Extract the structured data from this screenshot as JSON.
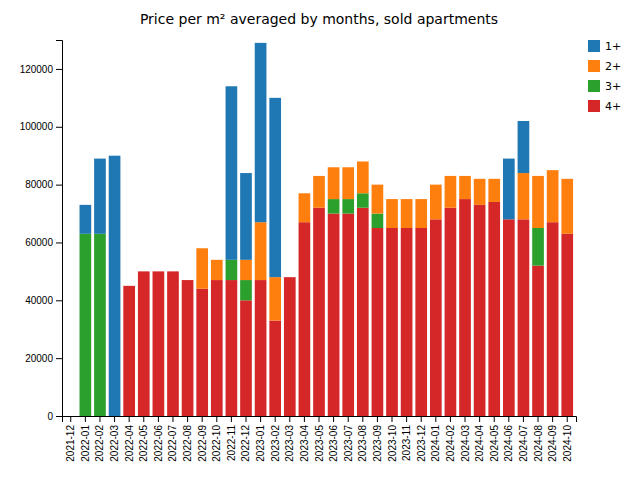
{
  "chart_data": {
    "type": "bar",
    "title": "Price per m² averaged by months, sold apartments",
    "stacked": true,
    "categories": [
      "2021-12",
      "2022-01",
      "2022-02",
      "2022-03",
      "2022-04",
      "2022-05",
      "2022-06",
      "2022-07",
      "2022-08",
      "2022-09",
      "2022-10",
      "2022-11",
      "2022-12",
      "2023-01",
      "2023-02",
      "2023-03",
      "2023-04",
      "2023-05",
      "2023-06",
      "2023-07",
      "2023-08",
      "2023-09",
      "2023-10",
      "2023-11",
      "2023-12",
      "2024-01",
      "2024-02",
      "2024-03",
      "2024-04",
      "2024-05",
      "2024-06",
      "2024-07",
      "2024-08",
      "2024-09",
      "2024-10"
    ],
    "series": [
      {
        "name": "4+",
        "color": "#d62728",
        "values": [
          0,
          0,
          0,
          0,
          45000,
          50000,
          50000,
          50000,
          47000,
          44000,
          47000,
          47000,
          40000,
          47000,
          33000,
          48000,
          67000,
          72000,
          70000,
          70000,
          72000,
          65000,
          65000,
          65000,
          65000,
          68000,
          72000,
          75000,
          73000,
          74000,
          68000,
          68000,
          52000,
          67000,
          63000
        ]
      },
      {
        "name": "3+",
        "color": "#2ca02c",
        "values": [
          0,
          63000,
          63000,
          0,
          0,
          0,
          0,
          0,
          0,
          0,
          0,
          7000,
          7000,
          0,
          0,
          0,
          0,
          0,
          5000,
          5000,
          5000,
          5000,
          0,
          0,
          0,
          0,
          0,
          0,
          0,
          0,
          0,
          0,
          13000,
          0,
          0
        ]
      },
      {
        "name": "2+",
        "color": "#ff7f0e",
        "values": [
          0,
          0,
          0,
          0,
          0,
          0,
          0,
          0,
          0,
          14000,
          7000,
          0,
          7000,
          20000,
          15000,
          0,
          10000,
          11000,
          11000,
          11000,
          11000,
          10000,
          10000,
          10000,
          10000,
          12000,
          11000,
          8000,
          9000,
          8000,
          0,
          16000,
          18000,
          18000,
          19000
        ]
      },
      {
        "name": "1+",
        "color": "#1f77b4",
        "values": [
          0,
          10000,
          26000,
          90000,
          0,
          0,
          0,
          0,
          0,
          0,
          0,
          60000,
          30000,
          62000,
          62000,
          0,
          0,
          0,
          0,
          0,
          0,
          0,
          0,
          0,
          0,
          0,
          0,
          0,
          0,
          0,
          21000,
          18000,
          0,
          0,
          0
        ]
      }
    ],
    "ylim": [
      0,
      130000
    ],
    "yticks": [
      0,
      20000,
      40000,
      60000,
      80000,
      100000,
      120000
    ],
    "grid": false,
    "legend": "upper right"
  }
}
